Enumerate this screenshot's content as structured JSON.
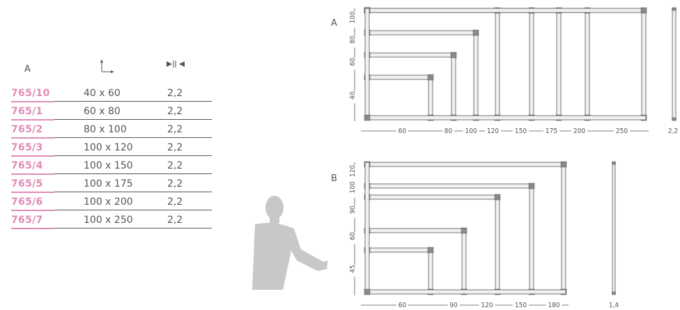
{
  "colors": {
    "code": "#e08bb5",
    "text": "#555555",
    "silhouette": "#c8c8c8"
  },
  "table": {
    "header": {
      "col_a": "A",
      "col_size_icon": "width-height-axes-icon",
      "col_thick_icon": "thickness-arrows-icon"
    },
    "rows": [
      {
        "code": "765/10",
        "size": "40 x 60",
        "thickness": "2,2"
      },
      {
        "code": "765/1",
        "size": "60 x 80",
        "thickness": "2,2"
      },
      {
        "code": "765/2",
        "size": "80 x 100",
        "thickness": "2,2"
      },
      {
        "code": "765/3",
        "size": "100 x 120",
        "thickness": "2,2"
      },
      {
        "code": "765/4",
        "size": "100 x 150",
        "thickness": "2,2"
      },
      {
        "code": "765/5",
        "size": "100 x 175",
        "thickness": "2,2"
      },
      {
        "code": "765/6",
        "size": "100 x 200",
        "thickness": "2,2"
      },
      {
        "code": "765/7",
        "size": "100 x 250",
        "thickness": "2,2"
      }
    ]
  },
  "diagram_a": {
    "label": "A",
    "widths": [
      "60",
      "80",
      "100",
      "120",
      "150",
      "175",
      "200",
      "250"
    ],
    "heights": [
      "40",
      "60",
      "80",
      "100"
    ],
    "thickness": "2,2"
  },
  "diagram_b": {
    "label": "B",
    "widths": [
      "60",
      "90",
      "120",
      "150",
      "180"
    ],
    "heights": [
      "45",
      "60",
      "90",
      "100",
      "120"
    ],
    "thickness": "1,4"
  }
}
